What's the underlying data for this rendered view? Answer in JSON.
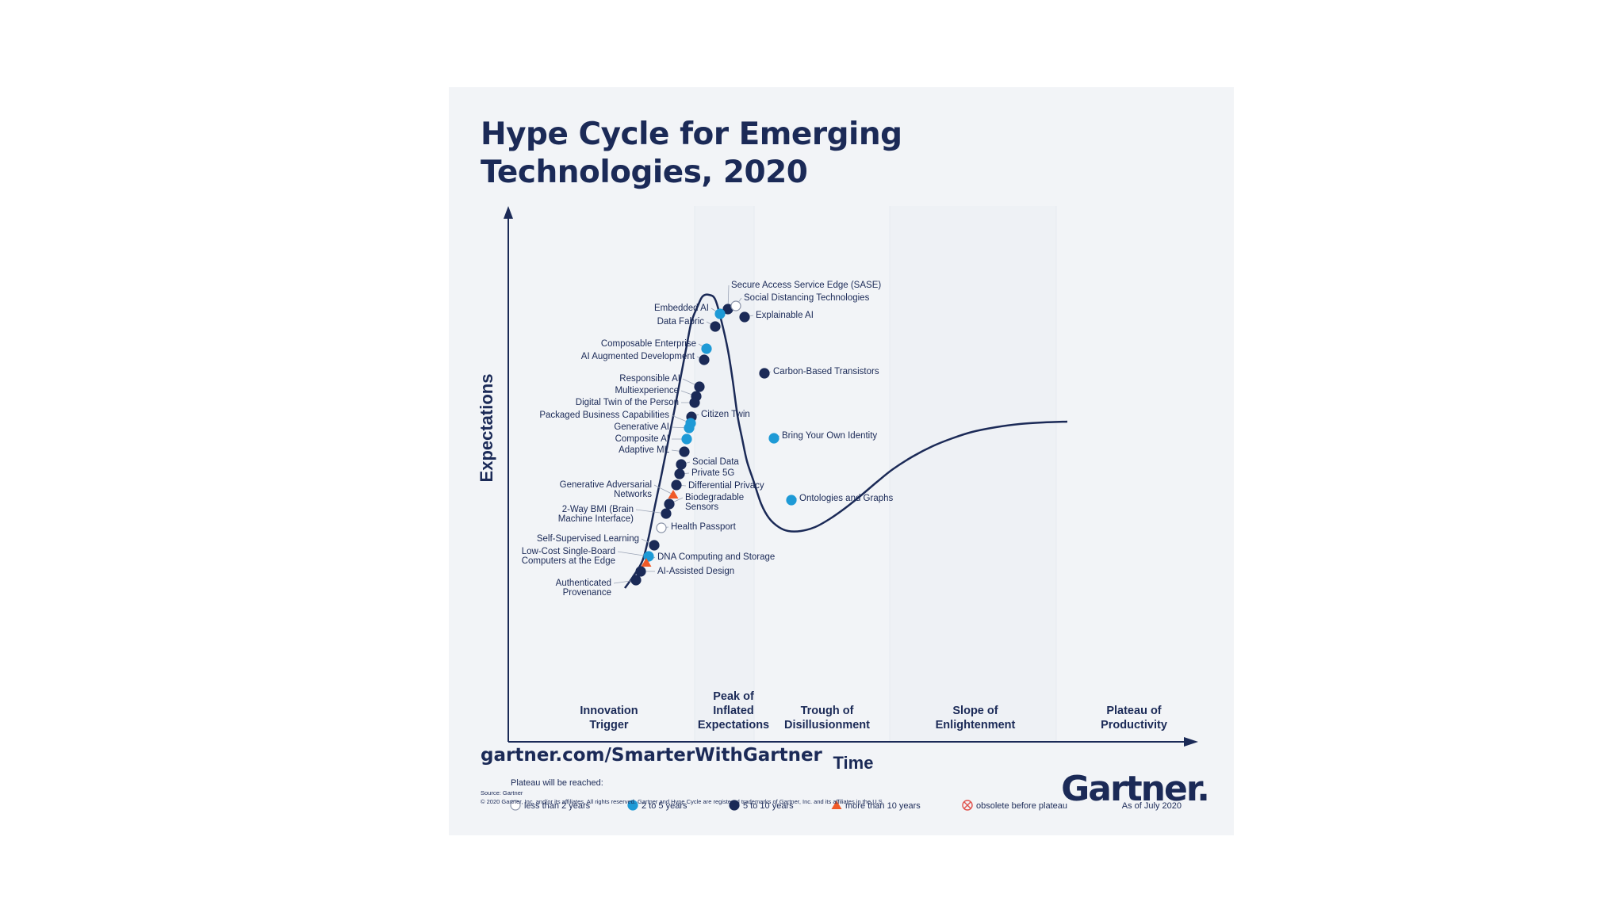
{
  "title": "Hype Cycle for Emerging Technologies, 2020",
  "axes": {
    "y_label": "Expectations",
    "x_label": "Time"
  },
  "phases": [
    {
      "name": "Innovation Trigger",
      "lines": [
        "Innovation",
        "Trigger"
      ]
    },
    {
      "name": "Peak of Inflated Expectations",
      "lines": [
        "Peak of",
        "Inflated",
        "Expectations"
      ]
    },
    {
      "name": "Trough of Disillusionment",
      "lines": [
        "Trough of",
        "Disillusionment"
      ]
    },
    {
      "name": "Slope of Enlightenment",
      "lines": [
        "Slope of",
        "Enlightenment"
      ]
    },
    {
      "name": "Plateau of Productivity",
      "lines": [
        "Plateau of",
        "Productivity"
      ]
    }
  ],
  "technologies": [
    {
      "name": "Secure Access Service Edge (SASE)",
      "lines": [
        "Secure Access Service Edge (SASE)"
      ],
      "plateau": "5 to 10 years"
    },
    {
      "name": "Social Distancing Technologies",
      "lines": [
        "Social Distancing Technologies"
      ],
      "plateau": "less than 2 years"
    },
    {
      "name": "Embedded AI",
      "lines": [
        "Embedded AI"
      ],
      "plateau": "2 to 5 years"
    },
    {
      "name": "Explainable AI",
      "lines": [
        "Explainable AI"
      ],
      "plateau": "5 to 10 years"
    },
    {
      "name": "Data Fabric",
      "lines": [
        "Data Fabric"
      ],
      "plateau": "5 to 10 years"
    },
    {
      "name": "Composable Enterprise",
      "lines": [
        "Composable Enterprise"
      ],
      "plateau": "2 to 5 years"
    },
    {
      "name": "AI Augmented Development",
      "lines": [
        "AI Augmented Development"
      ],
      "plateau": "5 to 10 years"
    },
    {
      "name": "Carbon-Based Transistors",
      "lines": [
        "Carbon-Based Transistors"
      ],
      "plateau": "5 to 10 years"
    },
    {
      "name": "Responsible AI",
      "lines": [
        "Responsible AI"
      ],
      "plateau": "5 to 10 years"
    },
    {
      "name": "Multiexperience",
      "lines": [
        "Multiexperience"
      ],
      "plateau": "5 to 10 years"
    },
    {
      "name": "Digital Twin of the Person",
      "lines": [
        "Digital Twin of the Person"
      ],
      "plateau": "5 to 10 years"
    },
    {
      "name": "Citizen Twin",
      "lines": [
        "Citizen Twin"
      ],
      "plateau": "5 to 10 years"
    },
    {
      "name": "Packaged Business Capabilities",
      "lines": [
        "Packaged Business Capabilities"
      ],
      "plateau": "2 to 5 years"
    },
    {
      "name": "Generative AI",
      "lines": [
        "Generative AI"
      ],
      "plateau": "2 to 5 years"
    },
    {
      "name": "Bring Your Own Identity",
      "lines": [
        "Bring Your Own Identity"
      ],
      "plateau": "2 to 5 years"
    },
    {
      "name": "Composite AI",
      "lines": [
        "Composite AI"
      ],
      "plateau": "2 to 5 years"
    },
    {
      "name": "Adaptive ML",
      "lines": [
        "Adaptive ML"
      ],
      "plateau": "5 to 10 years"
    },
    {
      "name": "Social Data",
      "lines": [
        "Social Data"
      ],
      "plateau": "5 to 10 years"
    },
    {
      "name": "Private 5G",
      "lines": [
        "Private 5G"
      ],
      "plateau": "5 to 10 years"
    },
    {
      "name": "Differential Privacy",
      "lines": [
        "Differential Privacy"
      ],
      "plateau": "5 to 10 years"
    },
    {
      "name": "Generative Adversarial Networks",
      "lines": [
        "Generative Adversarial",
        "Networks"
      ],
      "plateau": "more than 10 years"
    },
    {
      "name": "Ontologies and Graphs",
      "lines": [
        "Ontologies and Graphs"
      ],
      "plateau": "2 to 5 years"
    },
    {
      "name": "Biodegradable Sensors",
      "lines": [
        "Biodegradable",
        "Sensors"
      ],
      "plateau": "5 to 10 years"
    },
    {
      "name": "2-Way BMI (Brain Machine Interface)",
      "lines": [
        "2-Way BMI (Brain",
        "Machine Interface)"
      ],
      "plateau": "5 to 10 years"
    },
    {
      "name": "Health Passport",
      "lines": [
        "Health Passport"
      ],
      "plateau": "less than 2 years"
    },
    {
      "name": "Self-Supervised Learning",
      "lines": [
        "Self-Supervised Learning"
      ],
      "plateau": "5 to 10 years"
    },
    {
      "name": "Low-Cost Single-Board Computers at the Edge",
      "lines": [
        "Low-Cost Single-Board",
        "Computers at the Edge"
      ],
      "plateau": "2 to 5 years"
    },
    {
      "name": "DNA Computing and Storage",
      "lines": [
        "DNA Computing and Storage"
      ],
      "plateau": "more than 10 years"
    },
    {
      "name": "AI-Assisted Design",
      "lines": [
        "AI-Assisted Design"
      ],
      "plateau": "5 to 10 years"
    },
    {
      "name": "Authenticated Provenance",
      "lines": [
        "Authenticated",
        "Provenance"
      ],
      "plateau": "5 to 10 years"
    }
  ],
  "legend": {
    "heading": "Plateau will be reached:",
    "items": [
      {
        "label": "less than 2 years",
        "marker": "open-circle"
      },
      {
        "label": "2 to 5 years",
        "marker": "light-blue-circle"
      },
      {
        "label": "5 to 10 years",
        "marker": "dark-navy-circle"
      },
      {
        "label": "more than 10 years",
        "marker": "orange-triangle"
      },
      {
        "label": "obsolete before plateau",
        "marker": "crossed-red-circle"
      }
    ],
    "as_of": "As of July 2020"
  },
  "colors": {
    "navy": "#1b2a57",
    "light_blue": "#1e9ad6",
    "orange": "#f05a28",
    "obsolete_red": "#e0514c",
    "card_bg": "#f2f4f7"
  },
  "footer": {
    "website": "gartner.com/SmarterWithGartner",
    "source": "Source: Gartner",
    "copyright": "© 2020 Gartner, Inc. and/or its affiliates. All rights reserved. Gartner and Hype Cycle are registered trademarks of Gartner, Inc. and its affiliates in the U.S.",
    "logo": "Gartner"
  }
}
